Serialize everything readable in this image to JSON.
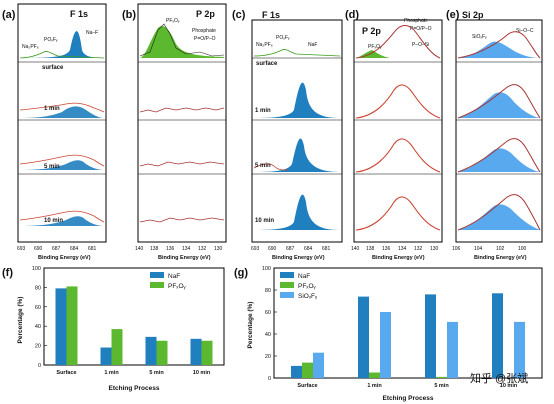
{
  "top_panels": [
    {
      "letter": "(a)",
      "title": "F 1s",
      "peak_labels": [
        "Na₂PF₆",
        "POₓFᵧ",
        "Na–F"
      ],
      "row_labels": [
        "surface",
        "1 min",
        "5 min",
        "10 min"
      ],
      "ticks": [
        "693",
        "690",
        "687",
        "684",
        "681"
      ],
      "xlabel": "Binding Energy (eV)"
    },
    {
      "letter": "(b)",
      "title": "P 2p",
      "peak_labels": [
        "PFₓOᵧ",
        "Phosphate",
        "P=O/P–O"
      ],
      "ticks": [
        "140",
        "138",
        "136",
        "134",
        "132",
        "130"
      ],
      "xlabel": "Binding Energy (eV)"
    },
    {
      "letter": "(c)",
      "title": "F 1s",
      "peak_labels": [
        "Na₂PF₆",
        "POₓFᵧ",
        "NaF"
      ],
      "row_labels": [
        "surface",
        "1 min",
        "5 min",
        "10 min"
      ],
      "ticks": [
        "693",
        "690",
        "687",
        "684",
        "681"
      ],
      "xlabel": "Binding Energy (eV)"
    },
    {
      "letter": "(d)",
      "title": "P 2p",
      "peak_labels": [
        "PFₓOᵧ",
        "Phosphate",
        "P=O/P–O",
        "P–O–Si"
      ],
      "ticks": [
        "140",
        "138",
        "136",
        "134",
        "132",
        "130"
      ],
      "xlabel": "Binding Energy (eV)"
    },
    {
      "letter": "(e)",
      "title": "Si 2p",
      "peak_labels": [
        "SiOₓFᵧ",
        "Si–O–C"
      ],
      "ticks": [
        "106",
        "104",
        "102",
        "100"
      ],
      "xlabel": "Binding Energy (eV)"
    }
  ],
  "chart_data": [
    {
      "type": "bar",
      "panel": "(f)",
      "categories": [
        "Surface",
        "1 min",
        "5 min",
        "10 min"
      ],
      "series": [
        {
          "name": "NaF",
          "values": [
            79,
            18,
            29,
            27
          ],
          "color": "#1f7fbf"
        },
        {
          "name": "PFₓOᵧ",
          "values": [
            81,
            37,
            25,
            25
          ],
          "color": "#5cb82e"
        }
      ],
      "ylabel": "Percentage (%)",
      "xlabel": "Etching Process",
      "ylim": [
        0,
        100
      ],
      "yticks": [
        "0",
        "20",
        "40",
        "60",
        "80",
        "100"
      ]
    },
    {
      "type": "bar",
      "panel": "(g)",
      "categories": [
        "Surface",
        "1 min",
        "5 min",
        "10 min"
      ],
      "series": [
        {
          "name": "NaF",
          "values": [
            11,
            74,
            76,
            77
          ],
          "color": "#1f7fbf"
        },
        {
          "name": "PFₓOᵧ",
          "values": [
            14,
            5,
            1,
            0
          ],
          "color": "#5cb82e"
        },
        {
          "name": "SiOₓFᵧ",
          "values": [
            23,
            60,
            51,
            51
          ],
          "color": "#59a9ee"
        }
      ],
      "ylabel": "Percentage (%)",
      "xlabel": "Etching Process",
      "ylim": [
        0,
        100
      ],
      "yticks": [
        "0",
        "20",
        "40",
        "60",
        "80",
        "100"
      ]
    }
  ],
  "watermark": "知乎 @张斌"
}
